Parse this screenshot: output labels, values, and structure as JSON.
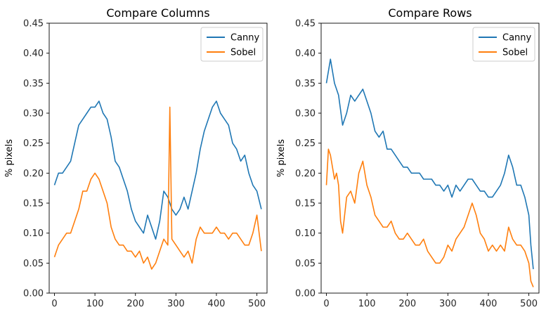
{
  "chart_data": [
    {
      "type": "line",
      "title": "Compare Columns",
      "xlabel": "",
      "ylabel": "% pixels",
      "xlim": [
        -13,
        525
      ],
      "ylim": [
        0,
        0.45
      ],
      "xticks": [
        0,
        100,
        200,
        300,
        400,
        500
      ],
      "yticks": [
        0.0,
        0.05,
        0.1,
        0.15,
        0.2,
        0.25,
        0.3,
        0.35,
        0.4,
        0.45
      ],
      "xtick_labels": [
        "0",
        "100",
        "200",
        "300",
        "400",
        "500"
      ],
      "ytick_labels": [
        "0.00",
        "0.05",
        "0.10",
        "0.15",
        "0.20",
        "0.25",
        "0.30",
        "0.35",
        "0.40",
        "0.45"
      ],
      "grid": false,
      "legend": "top-right",
      "series": [
        {
          "name": "Canny",
          "color": "#1f77b4",
          "x": [
            0,
            10,
            20,
            30,
            40,
            50,
            60,
            70,
            80,
            90,
            100,
            110,
            120,
            130,
            140,
            150,
            160,
            170,
            180,
            190,
            200,
            210,
            220,
            230,
            240,
            250,
            260,
            270,
            280,
            290,
            300,
            310,
            320,
            330,
            340,
            350,
            360,
            370,
            380,
            390,
            400,
            410,
            420,
            430,
            440,
            450,
            460,
            470,
            480,
            490,
            500,
            511
          ],
          "y": [
            0.18,
            0.2,
            0.2,
            0.21,
            0.22,
            0.25,
            0.28,
            0.29,
            0.3,
            0.31,
            0.31,
            0.32,
            0.3,
            0.29,
            0.26,
            0.22,
            0.21,
            0.19,
            0.17,
            0.14,
            0.12,
            0.11,
            0.1,
            0.13,
            0.11,
            0.09,
            0.12,
            0.17,
            0.16,
            0.14,
            0.13,
            0.14,
            0.16,
            0.14,
            0.17,
            0.2,
            0.24,
            0.27,
            0.29,
            0.31,
            0.32,
            0.3,
            0.29,
            0.28,
            0.25,
            0.24,
            0.22,
            0.23,
            0.2,
            0.18,
            0.17,
            0.14
          ]
        },
        {
          "name": "Sobel",
          "color": "#ff7f0e",
          "x": [
            0,
            10,
            20,
            30,
            40,
            50,
            60,
            70,
            80,
            90,
            100,
            110,
            120,
            130,
            140,
            150,
            160,
            170,
            180,
            190,
            200,
            210,
            220,
            230,
            240,
            250,
            260,
            270,
            280,
            285,
            290,
            300,
            310,
            320,
            330,
            340,
            350,
            360,
            370,
            380,
            390,
            400,
            410,
            420,
            430,
            440,
            450,
            460,
            470,
            480,
            490,
            500,
            511
          ],
          "y": [
            0.06,
            0.08,
            0.09,
            0.1,
            0.1,
            0.12,
            0.14,
            0.17,
            0.17,
            0.19,
            0.2,
            0.19,
            0.17,
            0.15,
            0.11,
            0.09,
            0.08,
            0.08,
            0.07,
            0.07,
            0.06,
            0.07,
            0.05,
            0.06,
            0.04,
            0.05,
            0.07,
            0.09,
            0.08,
            0.31,
            0.09,
            0.08,
            0.07,
            0.06,
            0.07,
            0.05,
            0.09,
            0.11,
            0.1,
            0.1,
            0.1,
            0.11,
            0.1,
            0.1,
            0.09,
            0.1,
            0.1,
            0.09,
            0.08,
            0.08,
            0.1,
            0.13,
            0.07
          ]
        }
      ]
    },
    {
      "type": "line",
      "title": "Compare Rows",
      "xlabel": "",
      "ylabel": "% pixels",
      "xlim": [
        -13,
        525
      ],
      "ylim": [
        0,
        0.45
      ],
      "xticks": [
        0,
        100,
        200,
        300,
        400,
        500
      ],
      "yticks": [
        0.0,
        0.05,
        0.1,
        0.15,
        0.2,
        0.25,
        0.3,
        0.35,
        0.4,
        0.45
      ],
      "xtick_labels": [
        "0",
        "100",
        "200",
        "300",
        "400",
        "500"
      ],
      "ytick_labels": [
        "0.00",
        "0.05",
        "0.10",
        "0.15",
        "0.20",
        "0.25",
        "0.30",
        "0.35",
        "0.40",
        "0.45"
      ],
      "grid": false,
      "legend": "top-right",
      "series": [
        {
          "name": "Canny",
          "color": "#1f77b4",
          "x": [
            0,
            5,
            10,
            15,
            20,
            25,
            30,
            40,
            50,
            60,
            70,
            80,
            90,
            100,
            110,
            120,
            130,
            140,
            150,
            160,
            170,
            180,
            190,
            200,
            210,
            220,
            230,
            240,
            250,
            260,
            270,
            280,
            290,
            300,
            310,
            320,
            330,
            340,
            350,
            360,
            370,
            380,
            390,
            400,
            410,
            420,
            430,
            440,
            450,
            460,
            470,
            480,
            490,
            500,
            505,
            511
          ],
          "y": [
            0.35,
            0.37,
            0.39,
            0.37,
            0.35,
            0.34,
            0.33,
            0.28,
            0.3,
            0.33,
            0.32,
            0.33,
            0.34,
            0.32,
            0.3,
            0.27,
            0.26,
            0.27,
            0.24,
            0.24,
            0.23,
            0.22,
            0.21,
            0.21,
            0.2,
            0.2,
            0.2,
            0.19,
            0.19,
            0.19,
            0.18,
            0.18,
            0.17,
            0.18,
            0.16,
            0.18,
            0.17,
            0.18,
            0.19,
            0.19,
            0.18,
            0.17,
            0.17,
            0.16,
            0.16,
            0.17,
            0.18,
            0.2,
            0.23,
            0.21,
            0.18,
            0.18,
            0.16,
            0.13,
            0.08,
            0.04
          ]
        },
        {
          "name": "Sobel",
          "color": "#ff7f0e",
          "x": [
            0,
            5,
            10,
            15,
            20,
            25,
            30,
            35,
            40,
            50,
            60,
            70,
            80,
            90,
            100,
            110,
            120,
            130,
            140,
            150,
            160,
            170,
            180,
            190,
            200,
            210,
            220,
            230,
            240,
            250,
            260,
            270,
            280,
            290,
            300,
            310,
            320,
            330,
            340,
            350,
            360,
            370,
            380,
            390,
            400,
            410,
            420,
            430,
            440,
            450,
            460,
            470,
            480,
            490,
            500,
            505,
            511
          ],
          "y": [
            0.18,
            0.24,
            0.23,
            0.21,
            0.19,
            0.2,
            0.18,
            0.12,
            0.1,
            0.16,
            0.17,
            0.15,
            0.2,
            0.22,
            0.18,
            0.16,
            0.13,
            0.12,
            0.11,
            0.11,
            0.12,
            0.1,
            0.09,
            0.09,
            0.1,
            0.09,
            0.08,
            0.08,
            0.09,
            0.07,
            0.06,
            0.05,
            0.05,
            0.06,
            0.08,
            0.07,
            0.09,
            0.1,
            0.11,
            0.13,
            0.15,
            0.13,
            0.1,
            0.09,
            0.07,
            0.08,
            0.07,
            0.08,
            0.07,
            0.11,
            0.09,
            0.08,
            0.08,
            0.07,
            0.05,
            0.02,
            0.01
          ]
        }
      ]
    }
  ]
}
